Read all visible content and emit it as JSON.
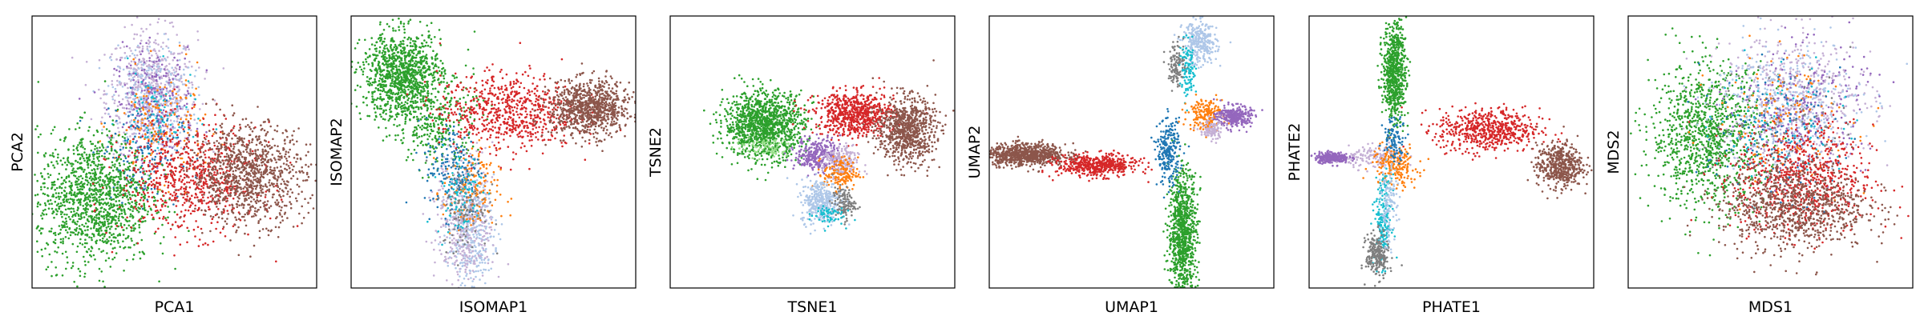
{
  "palette": {
    "blue": "#1f77b4",
    "light_blue": "#aec7e8",
    "orange": "#ff7f0e",
    "green": "#2ca02c",
    "light_green": "#98df8a",
    "red": "#d62728",
    "purple": "#9467bd",
    "light_purple": "#c5b0d5",
    "brown": "#8c564b",
    "pink": "#e377c2",
    "gray": "#7f7f7f",
    "cyan": "#17becf"
  },
  "chart_data": [
    {
      "type": "scatter",
      "xlabel": "PCA1",
      "ylabel": "PCA2",
      "grid": false,
      "ticks": "hidden",
      "clusters": [
        {
          "color": "light_purple",
          "cx": 0.42,
          "cy": 0.72,
          "sx": 0.08,
          "sy": 0.11,
          "n": 600
        },
        {
          "color": "light_blue",
          "cx": 0.42,
          "cy": 0.7,
          "sx": 0.07,
          "sy": 0.1,
          "n": 300
        },
        {
          "color": "purple",
          "cx": 0.43,
          "cy": 0.68,
          "sx": 0.07,
          "sy": 0.1,
          "n": 250
        },
        {
          "color": "orange",
          "cx": 0.45,
          "cy": 0.6,
          "sx": 0.08,
          "sy": 0.1,
          "n": 150
        },
        {
          "color": "cyan",
          "cx": 0.44,
          "cy": 0.62,
          "sx": 0.07,
          "sy": 0.09,
          "n": 80
        },
        {
          "color": "blue",
          "cx": 0.38,
          "cy": 0.5,
          "sx": 0.07,
          "sy": 0.09,
          "n": 150
        },
        {
          "color": "green",
          "cx": 0.22,
          "cy": 0.33,
          "sx": 0.1,
          "sy": 0.12,
          "n": 1300
        },
        {
          "color": "red",
          "cx": 0.55,
          "cy": 0.4,
          "sx": 0.12,
          "sy": 0.1,
          "n": 700
        },
        {
          "color": "brown",
          "cx": 0.76,
          "cy": 0.42,
          "sx": 0.1,
          "sy": 0.09,
          "n": 1000
        }
      ]
    },
    {
      "type": "scatter",
      "xlabel": "ISOMAP1",
      "ylabel": "ISOMAP2",
      "grid": false,
      "ticks": "hidden",
      "clusters": [
        {
          "color": "green",
          "cx": 0.18,
          "cy": 0.78,
          "sx": 0.07,
          "sy": 0.08,
          "n": 1100
        },
        {
          "color": "green",
          "cx": 0.3,
          "cy": 0.6,
          "sx": 0.07,
          "sy": 0.08,
          "n": 300
        },
        {
          "color": "light_blue",
          "cx": 0.42,
          "cy": 0.2,
          "sx": 0.04,
          "sy": 0.1,
          "n": 350
        },
        {
          "color": "light_purple",
          "cx": 0.4,
          "cy": 0.25,
          "sx": 0.05,
          "sy": 0.12,
          "n": 400
        },
        {
          "color": "orange",
          "cx": 0.42,
          "cy": 0.35,
          "sx": 0.05,
          "sy": 0.08,
          "n": 150
        },
        {
          "color": "blue",
          "cx": 0.36,
          "cy": 0.45,
          "sx": 0.05,
          "sy": 0.09,
          "n": 180
        },
        {
          "color": "gray",
          "cx": 0.4,
          "cy": 0.3,
          "sx": 0.04,
          "sy": 0.08,
          "n": 120
        },
        {
          "color": "cyan",
          "cx": 0.38,
          "cy": 0.35,
          "sx": 0.04,
          "sy": 0.08,
          "n": 80
        },
        {
          "color": "red",
          "cx": 0.55,
          "cy": 0.65,
          "sx": 0.12,
          "sy": 0.07,
          "n": 700
        },
        {
          "color": "brown",
          "cx": 0.84,
          "cy": 0.66,
          "sx": 0.07,
          "sy": 0.05,
          "n": 900
        }
      ]
    },
    {
      "type": "scatter",
      "xlabel": "TSNE1",
      "ylabel": "TSNE2",
      "grid": false,
      "ticks": "hidden",
      "clusters": [
        {
          "color": "green",
          "cx": 0.33,
          "cy": 0.6,
          "sx": 0.07,
          "sy": 0.06,
          "n": 1200
        },
        {
          "color": "red",
          "cx": 0.65,
          "cy": 0.64,
          "sx": 0.07,
          "sy": 0.04,
          "n": 700
        },
        {
          "color": "brown",
          "cx": 0.83,
          "cy": 0.58,
          "sx": 0.05,
          "sy": 0.06,
          "n": 800
        },
        {
          "color": "purple",
          "cx": 0.52,
          "cy": 0.49,
          "sx": 0.04,
          "sy": 0.03,
          "n": 300
        },
        {
          "color": "light_purple",
          "cx": 0.6,
          "cy": 0.46,
          "sx": 0.03,
          "sy": 0.03,
          "n": 200
        },
        {
          "color": "orange",
          "cx": 0.6,
          "cy": 0.42,
          "sx": 0.03,
          "sy": 0.03,
          "n": 150
        },
        {
          "color": "light_blue",
          "cx": 0.53,
          "cy": 0.32,
          "sx": 0.035,
          "sy": 0.04,
          "n": 350
        },
        {
          "color": "gray",
          "cx": 0.61,
          "cy": 0.31,
          "sx": 0.02,
          "sy": 0.03,
          "n": 120
        },
        {
          "color": "cyan",
          "cx": 0.55,
          "cy": 0.27,
          "sx": 0.03,
          "sy": 0.02,
          "n": 60
        },
        {
          "color": "light_green",
          "cx": 0.33,
          "cy": 0.52,
          "sx": 0.05,
          "sy": 0.02,
          "n": 80
        }
      ]
    },
    {
      "type": "scatter",
      "xlabel": "UMAP1",
      "ylabel": "UMAP2",
      "grid": false,
      "ticks": "hidden",
      "clusters": [
        {
          "color": "brown",
          "cx": 0.13,
          "cy": 0.49,
          "sx": 0.07,
          "sy": 0.02,
          "n": 800
        },
        {
          "color": "red",
          "cx": 0.38,
          "cy": 0.45,
          "sx": 0.07,
          "sy": 0.02,
          "n": 500
        },
        {
          "color": "green",
          "cx": 0.68,
          "cy": 0.2,
          "sx": 0.025,
          "sy": 0.12,
          "n": 900
        },
        {
          "color": "blue",
          "cx": 0.63,
          "cy": 0.5,
          "sx": 0.02,
          "sy": 0.06,
          "n": 250
        },
        {
          "color": "light_blue",
          "cx": 0.74,
          "cy": 0.9,
          "sx": 0.03,
          "sy": 0.04,
          "n": 300
        },
        {
          "color": "gray",
          "cx": 0.66,
          "cy": 0.82,
          "sx": 0.015,
          "sy": 0.04,
          "n": 120
        },
        {
          "color": "cyan",
          "cx": 0.7,
          "cy": 0.8,
          "sx": 0.015,
          "sy": 0.05,
          "n": 100
        },
        {
          "color": "orange",
          "cx": 0.76,
          "cy": 0.64,
          "sx": 0.03,
          "sy": 0.03,
          "n": 200
        },
        {
          "color": "purple",
          "cx": 0.86,
          "cy": 0.63,
          "sx": 0.03,
          "sy": 0.02,
          "n": 300
        },
        {
          "color": "light_purple",
          "cx": 0.78,
          "cy": 0.58,
          "sx": 0.02,
          "sy": 0.02,
          "n": 100
        }
      ]
    },
    {
      "type": "scatter",
      "xlabel": "PHATE1",
      "ylabel": "PHATE2",
      "grid": false,
      "ticks": "hidden",
      "clusters": [
        {
          "color": "green",
          "cx": 0.3,
          "cy": 0.8,
          "sx": 0.02,
          "sy": 0.09,
          "n": 700
        },
        {
          "color": "red",
          "cx": 0.63,
          "cy": 0.58,
          "sx": 0.09,
          "sy": 0.04,
          "n": 600
        },
        {
          "color": "brown",
          "cx": 0.88,
          "cy": 0.45,
          "sx": 0.04,
          "sy": 0.04,
          "n": 500
        },
        {
          "color": "purple",
          "cx": 0.08,
          "cy": 0.48,
          "sx": 0.03,
          "sy": 0.01,
          "n": 250
        },
        {
          "color": "light_purple",
          "cx": 0.24,
          "cy": 0.48,
          "sx": 0.05,
          "sy": 0.02,
          "n": 150
        },
        {
          "color": "orange",
          "cx": 0.3,
          "cy": 0.45,
          "sx": 0.04,
          "sy": 0.04,
          "n": 200
        },
        {
          "color": "cyan",
          "cx": 0.26,
          "cy": 0.25,
          "sx": 0.015,
          "sy": 0.08,
          "n": 200
        },
        {
          "color": "gray",
          "cx": 0.24,
          "cy": 0.12,
          "sx": 0.02,
          "sy": 0.04,
          "n": 250
        },
        {
          "color": "light_blue",
          "cx": 0.28,
          "cy": 0.3,
          "sx": 0.015,
          "sy": 0.07,
          "n": 120
        },
        {
          "color": "blue",
          "cx": 0.3,
          "cy": 0.55,
          "sx": 0.02,
          "sy": 0.04,
          "n": 100
        }
      ]
    },
    {
      "type": "scatter",
      "xlabel": "MDS1",
      "ylabel": "MDS2",
      "grid": false,
      "ticks": "hidden",
      "clusters": [
        {
          "color": "green",
          "cx": 0.28,
          "cy": 0.56,
          "sx": 0.1,
          "sy": 0.13,
          "n": 1100
        },
        {
          "color": "light_purple",
          "cx": 0.6,
          "cy": 0.7,
          "sx": 0.13,
          "sy": 0.12,
          "n": 500
        },
        {
          "color": "light_blue",
          "cx": 0.55,
          "cy": 0.68,
          "sx": 0.13,
          "sy": 0.12,
          "n": 350
        },
        {
          "color": "purple",
          "cx": 0.6,
          "cy": 0.65,
          "sx": 0.12,
          "sy": 0.12,
          "n": 250
        },
        {
          "color": "orange",
          "cx": 0.55,
          "cy": 0.62,
          "sx": 0.12,
          "sy": 0.12,
          "n": 150
        },
        {
          "color": "blue",
          "cx": 0.5,
          "cy": 0.55,
          "sx": 0.12,
          "sy": 0.12,
          "n": 150
        },
        {
          "color": "cyan",
          "cx": 0.55,
          "cy": 0.6,
          "sx": 0.12,
          "sy": 0.12,
          "n": 80
        },
        {
          "color": "gray",
          "cx": 0.55,
          "cy": 0.6,
          "sx": 0.12,
          "sy": 0.12,
          "n": 80
        },
        {
          "color": "red",
          "cx": 0.62,
          "cy": 0.4,
          "sx": 0.12,
          "sy": 0.1,
          "n": 700
        },
        {
          "color": "brown",
          "cx": 0.58,
          "cy": 0.3,
          "sx": 0.13,
          "sy": 0.08,
          "n": 900
        }
      ]
    }
  ]
}
